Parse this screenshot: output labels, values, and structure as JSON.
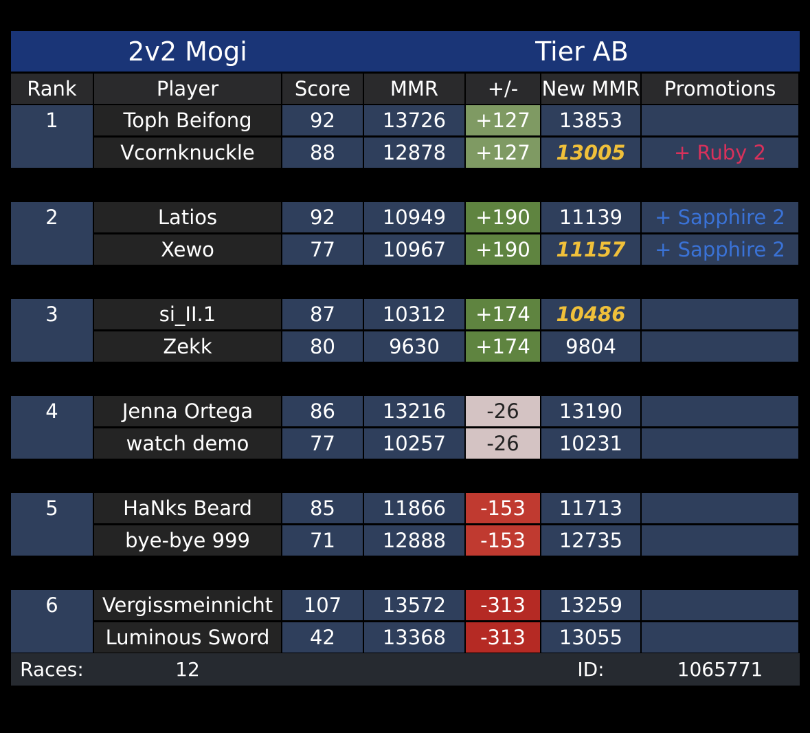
{
  "title_left": "2v2 Mogi",
  "title_right": "Tier AB",
  "headers": {
    "rank": "Rank",
    "player": "Player",
    "score": "Score",
    "mmr": "MMR",
    "delta": "+/-",
    "new_mmr": "New MMR",
    "promotions": "Promotions"
  },
  "colors": {
    "title_bar": "#1a3577",
    "row_blue": "#2f3f5c",
    "row_dark": "#242424",
    "delta_light_green": "#7f9a63",
    "delta_green": "#5f8440",
    "delta_pink": "#d4c3c3",
    "delta_red": "#c03a30",
    "delta_dark_red": "#b52a24",
    "highlight_gold": "#f0c03a",
    "ruby": "#d8315b",
    "sapphire": "#3a72d6"
  },
  "teams": [
    {
      "rank": "1",
      "delta": "+127",
      "delta_color": "#7f9a63",
      "delta_text": "#ffffff",
      "players": [
        {
          "name": "Toph Beifong",
          "score": "92",
          "mmr": "13726",
          "new_mmr": "13853",
          "highlight": false,
          "promotion": ""
        },
        {
          "name": "Vcornknuckle",
          "score": "88",
          "mmr": "12878",
          "new_mmr": "13005",
          "highlight": true,
          "promotion": "+ Ruby 2",
          "promotion_type": "ruby"
        }
      ]
    },
    {
      "rank": "2",
      "delta": "+190",
      "delta_color": "#5f8440",
      "delta_text": "#ffffff",
      "players": [
        {
          "name": "Latios",
          "score": "92",
          "mmr": "10949",
          "new_mmr": "11139",
          "highlight": false,
          "promotion": "+ Sapphire 2",
          "promotion_type": "sapphire"
        },
        {
          "name": "Xewo",
          "score": "77",
          "mmr": "10967",
          "new_mmr": "11157",
          "highlight": true,
          "promotion": "+ Sapphire 2",
          "promotion_type": "sapphire"
        }
      ]
    },
    {
      "rank": "3",
      "delta": "+174",
      "delta_color": "#5f8440",
      "delta_text": "#ffffff",
      "players": [
        {
          "name": "si_II.1",
          "score": "87",
          "mmr": "10312",
          "new_mmr": "10486",
          "highlight": true,
          "promotion": ""
        },
        {
          "name": "Zekk",
          "score": "80",
          "mmr": "9630",
          "new_mmr": "9804",
          "highlight": false,
          "promotion": ""
        }
      ]
    },
    {
      "rank": "4",
      "delta": "-26",
      "delta_color": "#d4c3c3",
      "delta_text": "#222222",
      "players": [
        {
          "name": "Jenna Ortega",
          "score": "86",
          "mmr": "13216",
          "new_mmr": "13190",
          "highlight": false,
          "promotion": ""
        },
        {
          "name": "watch demo",
          "score": "77",
          "mmr": "10257",
          "new_mmr": "10231",
          "highlight": false,
          "promotion": ""
        }
      ]
    },
    {
      "rank": "5",
      "delta": "-153",
      "delta_color": "#c03a30",
      "delta_text": "#ffffff",
      "players": [
        {
          "name": "HaNks Beard",
          "score": "85",
          "mmr": "11866",
          "new_mmr": "11713",
          "highlight": false,
          "promotion": ""
        },
        {
          "name": "bye-bye 999",
          "score": "71",
          "mmr": "12888",
          "new_mmr": "12735",
          "highlight": false,
          "promotion": ""
        }
      ]
    },
    {
      "rank": "6",
      "delta": "-313",
      "delta_color": "#b52a24",
      "delta_text": "#ffffff",
      "players": [
        {
          "name": "Vergissmeinnicht",
          "score": "107",
          "mmr": "13572",
          "new_mmr": "13259",
          "highlight": false,
          "promotion": ""
        },
        {
          "name": "Luminous Sword",
          "score": "42",
          "mmr": "13368",
          "new_mmr": "13055",
          "highlight": false,
          "promotion": ""
        }
      ]
    }
  ],
  "footer": {
    "races_label": "Races:",
    "races_value": "12",
    "id_label": "ID:",
    "id_value": "1065771"
  }
}
